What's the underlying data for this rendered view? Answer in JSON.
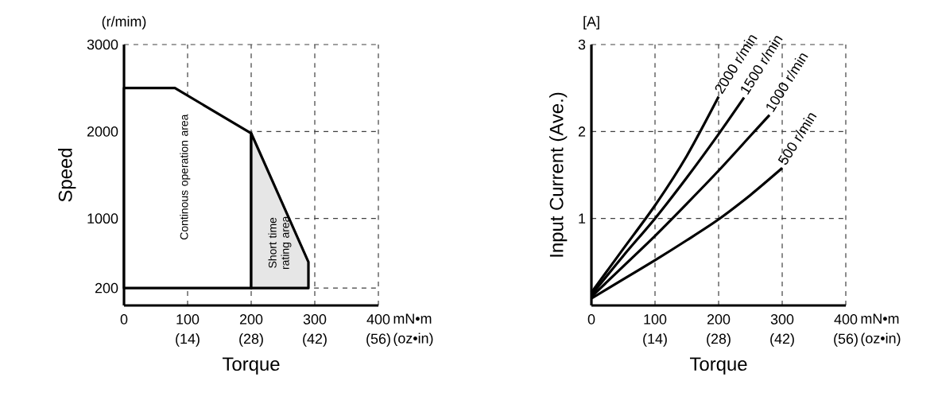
{
  "chart_data": [
    {
      "type": "area",
      "xlabel": "Torque",
      "ylabel": "Speed",
      "annotations": [
        "(r/mim)",
        "mN•m",
        "(oz•in)"
      ],
      "xlim": [
        0,
        400
      ],
      "ylim": [
        0,
        3000
      ],
      "x2lim": [
        0,
        56
      ],
      "xticks": [
        0,
        100,
        200,
        300,
        400
      ],
      "x2ticks": [
        {
          "value": 14,
          "label": "(14)"
        },
        {
          "value": 28,
          "label": "(28)"
        },
        {
          "value": 42,
          "label": "(42)"
        },
        {
          "value": 56,
          "label": "(56)"
        }
      ],
      "yticks": [
        200,
        1000,
        2000,
        3000
      ],
      "grid": true,
      "series": [
        {
          "name": "Continous operation area",
          "color": "#ffffff",
          "x": [
            0,
            0,
            80,
            200,
            200
          ],
          "values": [
            200,
            2500,
            2500,
            1980,
            200
          ]
        },
        {
          "name": "Short time rating area",
          "color": "#e6e6e6",
          "x": [
            200,
            200,
            290,
            290
          ],
          "values": [
            200,
            1980,
            500,
            200
          ]
        }
      ]
    },
    {
      "type": "line",
      "xlabel": "Torque",
      "ylabel": "Input Current (Ave.)",
      "annotations": [
        "[A]",
        "mN•m",
        "(oz•in)"
      ],
      "xlim": [
        0,
        400
      ],
      "ylim": [
        0,
        3
      ],
      "x2lim": [
        0,
        56
      ],
      "xticks": [
        0,
        100,
        200,
        300,
        400
      ],
      "x2ticks": [
        {
          "value": 14,
          "label": "(14)"
        },
        {
          "value": 28,
          "label": "(28)"
        },
        {
          "value": 42,
          "label": "(42)"
        },
        {
          "value": 56,
          "label": "(56)"
        }
      ],
      "yticks": [
        1,
        2,
        3
      ],
      "grid": true,
      "series": [
        {
          "name": "2000 r/min",
          "color": "#000000",
          "x": [
            0,
            50,
            100,
            150,
            200
          ],
          "values": [
            0.15,
            0.65,
            1.15,
            1.72,
            2.4
          ]
        },
        {
          "name": "1500 r/min",
          "color": "#000000",
          "x": [
            0,
            50,
            100,
            150,
            200,
            240
          ],
          "values": [
            0.12,
            0.57,
            1.0,
            1.47,
            1.97,
            2.39
          ]
        },
        {
          "name": "1000 r/min",
          "color": "#000000",
          "x": [
            0,
            50,
            100,
            150,
            200,
            250,
            280
          ],
          "values": [
            0.1,
            0.45,
            0.8,
            1.17,
            1.55,
            1.95,
            2.19
          ]
        },
        {
          "name": "500 r/min",
          "color": "#000000",
          "x": [
            0,
            50,
            100,
            150,
            200,
            250,
            300
          ],
          "values": [
            0.08,
            0.3,
            0.52,
            0.75,
            0.99,
            1.27,
            1.58
          ]
        }
      ]
    }
  ]
}
